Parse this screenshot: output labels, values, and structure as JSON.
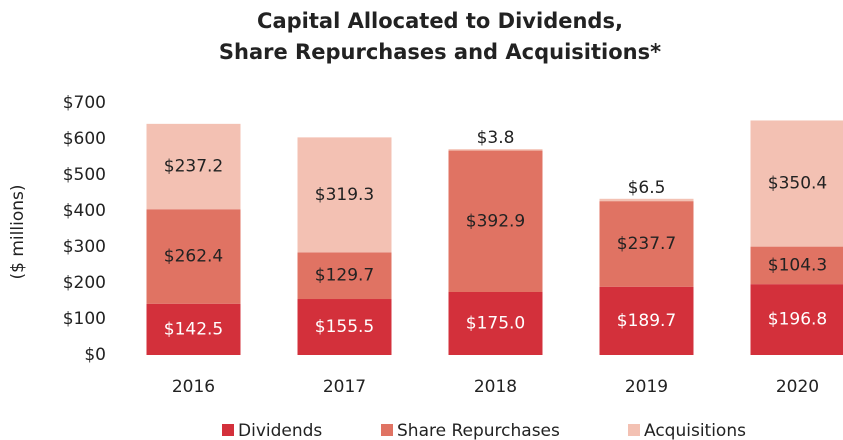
{
  "chart_data": {
    "type": "stacked_bar",
    "title": [
      "Capital Allocated to Dividends,",
      "Share Repurchases and Acquisitions*"
    ],
    "y_label": "($ millions)",
    "categories": [
      "2016",
      "2017",
      "2018",
      "2019",
      "2020"
    ],
    "series": [
      {
        "name": "Dividends",
        "color": "#d3303b",
        "values": [
          142.5,
          155.5,
          175.0,
          189.7,
          196.8
        ],
        "value_labels": [
          "$142.5",
          "$155.5",
          "$175.0",
          "$189.7",
          "$196.8"
        ]
      },
      {
        "name": "Share Repurchases",
        "color": "#e07363",
        "values": [
          262.4,
          129.7,
          392.9,
          237.7,
          104.3
        ],
        "value_labels": [
          "$262.4",
          "$129.7",
          "$392.9",
          "$237.7",
          "$104.3"
        ]
      },
      {
        "name": "Acquisitions",
        "color": "#f3c1b3",
        "values": [
          237.2,
          319.3,
          3.8,
          6.5,
          350.4
        ],
        "value_labels": [
          "$237.2",
          "$319.3",
          "$3.8",
          "$6.5",
          "$350.4"
        ]
      }
    ],
    "ylim": [
      0,
      700
    ],
    "yticks": [
      {
        "value": 0,
        "label": "$0"
      },
      {
        "value": 100,
        "label": "$100"
      },
      {
        "value": 200,
        "label": "$200"
      },
      {
        "value": 300,
        "label": "$300"
      },
      {
        "value": 400,
        "label": "$400"
      },
      {
        "value": 500,
        "label": "$500"
      },
      {
        "value": 600,
        "label": "$600"
      },
      {
        "value": 700,
        "label": "$700"
      }
    ],
    "legend": "bottom"
  }
}
